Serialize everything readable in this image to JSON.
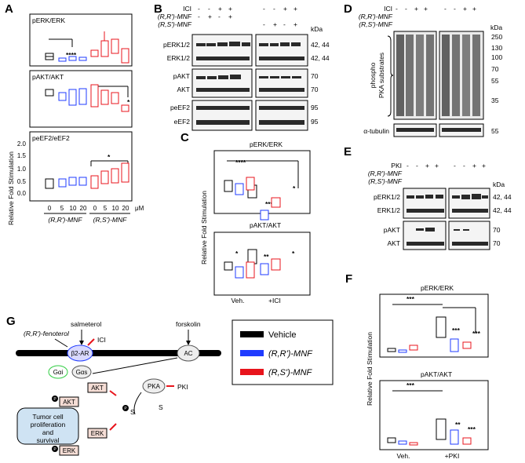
{
  "panels": {
    "A": {
      "letter": "A"
    },
    "B": {
      "letter": "B"
    },
    "C": {
      "letter": "C"
    },
    "D": {
      "letter": "D"
    },
    "E": {
      "letter": "E"
    },
    "F": {
      "letter": "F"
    },
    "G": {
      "letter": "G"
    }
  },
  "common": {
    "ylabel": "Relative Fold Stimulation",
    "kda": "kDa",
    "rr_mnf": "(R,R')-MNF",
    "rs_mnf": "(R,S')-MNF",
    "um": "μM",
    "ici": "ICI",
    "pki": "PKI",
    "plus": "+",
    "minus": "-",
    "sig4": "****",
    "sig3": "***",
    "sig2": "**",
    "sig1": "*"
  },
  "panelA": {
    "sub": [
      "pERK/ERK",
      "pAKT/AKT",
      "peEF2/eEF2"
    ],
    "xticks": [
      "0",
      "5",
      "10",
      "20",
      "0",
      "5",
      "10",
      "20"
    ],
    "yticks": [
      "0.0",
      "0.5",
      "1.0",
      "1.5",
      "2.0"
    ]
  },
  "panelB": {
    "rows": [
      {
        "label": "pERK1/2",
        "kda": "42, 44"
      },
      {
        "label": "ERK1/2",
        "kda": "42, 44"
      },
      {
        "label": "pAKT",
        "kda": "70"
      },
      {
        "label": "AKT",
        "kda": "70"
      },
      {
        "label": "peEF2",
        "kda": "95"
      },
      {
        "label": "eEF2",
        "kda": "95"
      }
    ]
  },
  "panelC": {
    "sub": [
      "pERK/ERK",
      "pAKT/AKT"
    ],
    "xcats": [
      "Veh.",
      "+ICI"
    ]
  },
  "panelD": {
    "ladder": [
      "250",
      "130",
      "100",
      "70",
      "55",
      "35"
    ],
    "side_label_1": "phospho",
    "side_label_2": "PKA substrates",
    "tubulin": "α-tubulin",
    "tubulin_kda": "55"
  },
  "panelE": {
    "rows": [
      {
        "label": "pERK1/2",
        "kda": "42, 44"
      },
      {
        "label": "ERK1/2",
        "kda": "42, 44"
      },
      {
        "label": "pAKT",
        "kda": "70"
      },
      {
        "label": "AKT",
        "kda": "70"
      }
    ]
  },
  "panelF": {
    "sub": [
      "pERK/ERK",
      "pAKT/AKT"
    ],
    "xcats": [
      "Veh.",
      "+PKI"
    ]
  },
  "panelG": {
    "salmeterol": "salmeterol",
    "fenoterol": "(R,R')-fenoterol",
    "forskolin": "forskolin",
    "b2ar": "β2-AR",
    "ici": "ICI",
    "gai": "Gαi",
    "gas": "Gαs",
    "ac": "AC",
    "pka": "PKA",
    "pki": "PKI",
    "akt": "AKT",
    "erk": "ERK",
    "p": "P",
    "s": "S",
    "tumor": [
      "Tumor cell",
      "proliferation",
      "and",
      "survival"
    ]
  },
  "legend": [
    {
      "name": "Vehicle",
      "color": "#000000"
    },
    {
      "name": "(R,R')-MNF",
      "color": "#1f3bff"
    },
    {
      "name": "(R,S')-MNF",
      "color": "#e8141c"
    }
  ]
}
